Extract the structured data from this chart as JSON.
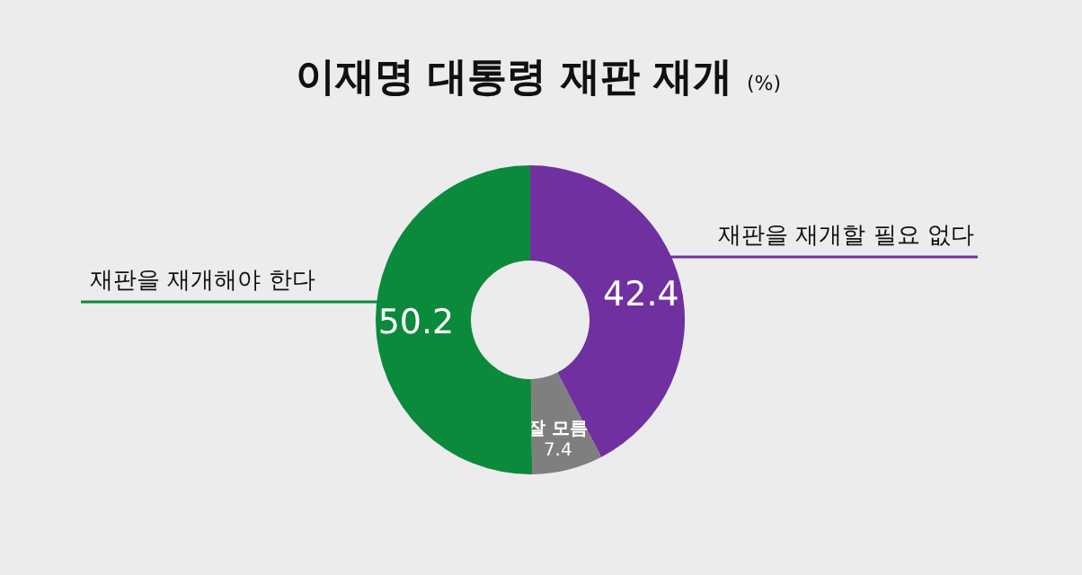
{
  "chart_data": {
    "type": "donut",
    "title": "이재명 대통령 재판 재개",
    "subtitle": "(%)",
    "categories": [
      "재판을 재개할 필요 없다",
      "잘 모름",
      "재판을 재개해야 한다"
    ],
    "values": [
      42.4,
      7.4,
      50.2
    ],
    "colors": [
      "#7030a0",
      "#7f7f7f",
      "#0b8a3c"
    ],
    "data_labels": true
  }
}
